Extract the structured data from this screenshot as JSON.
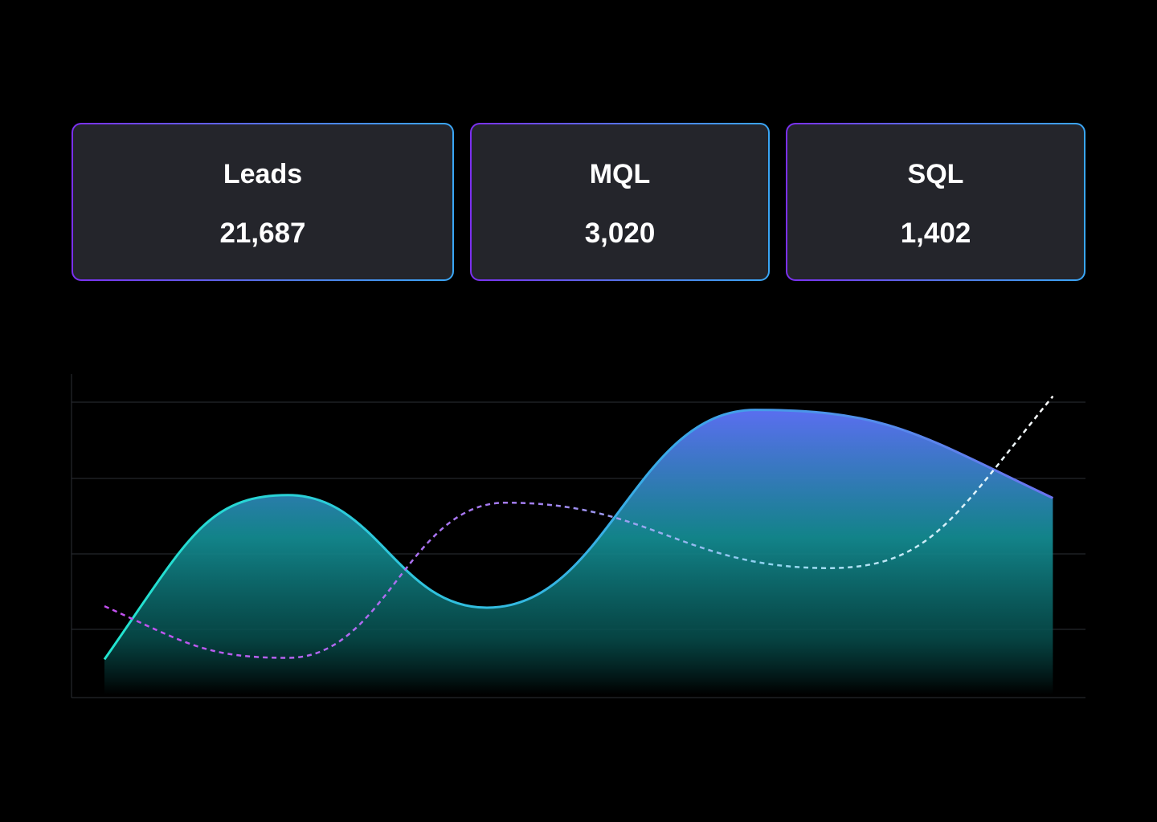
{
  "metrics": [
    {
      "label": "Leads",
      "value": "21,687"
    },
    {
      "label": "MQL",
      "value": "3,020"
    },
    {
      "label": "SQL",
      "value": "1,402"
    }
  ],
  "colors": {
    "background": "#000000",
    "card_background": "#24252b",
    "card_border_start": "#7b2ff0",
    "card_border_end": "#3aa6f5",
    "area_top": "#5a6ef0",
    "area_mid": "#138a90",
    "area_line_start": "#22e5cf",
    "area_line_end": "#6a74ee",
    "dashed_start": "#c34ff0",
    "dashed_end": "#ffffff",
    "grid": "#2d2f36"
  },
  "chart_data": {
    "type": "area",
    "title": "",
    "xlabel": "",
    "ylabel": "",
    "xlim": [
      0,
      100
    ],
    "ylim": [
      0,
      100
    ],
    "grid": true,
    "series": [
      {
        "style": "solid-area",
        "x": [
          0,
          19.3,
          40.2,
          68.4,
          99.7
        ],
        "y": [
          11.5,
          65.5,
          28.5,
          93.5,
          64.5
        ]
      },
      {
        "style": "dashed-line",
        "x": [
          0,
          19.3,
          42.2,
          76.1,
          99.7
        ],
        "y": [
          29.0,
          12.0,
          63.0,
          41.5,
          98.0
        ]
      }
    ]
  }
}
